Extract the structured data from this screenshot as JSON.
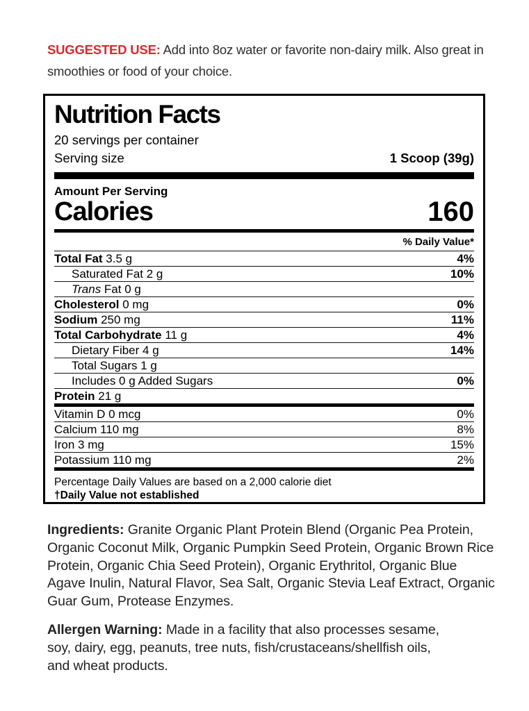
{
  "colors": {
    "accent_red": "#d8292f",
    "text_dark": "#2e2e2e",
    "panel_black": "#000000"
  },
  "suggested_use": {
    "label": "SUGGESTED USE:",
    "text": " Add into 8oz water or favorite non-dairy milk. Also great in smoothies or food of your choice."
  },
  "nutrition_facts": {
    "title": "Nutrition Facts",
    "servings_per_container": "20 servings per container",
    "serving_size_label": "Serving size",
    "serving_size_value": "1 Scoop (39g)",
    "amount_per_serving": "Amount Per Serving",
    "calories_label": "Calories",
    "calories_value": "160",
    "daily_value_header": "% Daily Value*",
    "rows": [
      {
        "name": "Total Fat",
        "rest": " 3.5 g",
        "dv": "4%"
      },
      {
        "name": "Saturated Fat",
        "rest": " 2 g",
        "dv": "10%"
      },
      {
        "name": "Trans",
        "rest": " Fat 0 g",
        "dv": ""
      },
      {
        "name": "Cholesterol",
        "rest": " 0 mg",
        "dv": "0%"
      },
      {
        "name": "Sodium",
        "rest": " 250 mg",
        "dv": "11%"
      },
      {
        "name": "Total Carbohydrate",
        "rest": " 11 g",
        "dv": "4%"
      },
      {
        "name": "Dietary Fiber",
        "rest": " 4 g",
        "dv": "14%"
      },
      {
        "name": "Total Sugars",
        "rest": " 1 g",
        "dv": ""
      },
      {
        "name": "Includes 0 g Added Sugars",
        "rest": "",
        "dv": "0%"
      },
      {
        "name": "Protein",
        "rest": " 21 g",
        "dv": ""
      }
    ],
    "micronutrients": [
      {
        "name": "Vitamin D 0 mcg",
        "dv": "0%"
      },
      {
        "name": "Calcium 110 mg",
        "dv": "8%"
      },
      {
        "name": "Iron 3 mg",
        "dv": "15%"
      },
      {
        "name": "Potassium 110 mg",
        "dv": "2%"
      }
    ],
    "footnote_line1": "Percentage Daily Values are based on a 2,000 calorie diet",
    "footnote_line2": "†Daily Value not established"
  },
  "ingredients": {
    "label": "Ingredients:",
    "text": " Granite Organic Plant Protein Blend (Organic Pea Protein, Organic Coconut Milk, Organic Pumpkin Seed Protein, Organic Brown Rice Protein, Organic Chia Seed Protein), Organic Erythritol, Organic Blue Agave Inulin, Natural Flavor, Sea Salt, Organic Stevia Leaf Extract, Organic Guar Gum, Protease Enzymes."
  },
  "allergen": {
    "label": "Allergen Warning:",
    "lines": [
      " Made in a facility that also processes sesame,",
      "soy, dairy, egg, peanuts, tree nuts, fish/crustaceans/shellfish oils,",
      "and wheat products."
    ]
  }
}
